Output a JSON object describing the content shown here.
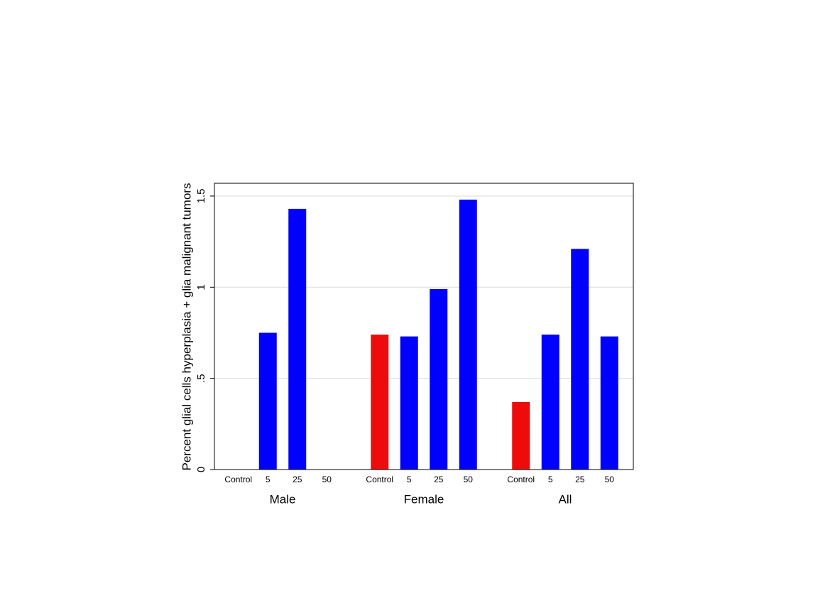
{
  "chart_data": {
    "type": "bar",
    "y_label": "Percent glial cells hyperplasia + glia malignant tumors",
    "categories": [
      "Male",
      "Female",
      "All"
    ],
    "series": [
      {
        "name": "Control",
        "color": "#ee0b0b",
        "values": [
          0,
          0.74,
          0.37
        ]
      },
      {
        "name": "5",
        "color": "#0000ff",
        "values": [
          0.75,
          0.73,
          0.74
        ]
      },
      {
        "name": "25",
        "color": "#0000ff",
        "values": [
          1.43,
          0.99,
          1.21
        ]
      },
      {
        "name": "50",
        "color": "#0000ff",
        "values": [
          0,
          1.48,
          0.73
        ]
      }
    ],
    "ylim": [
      0,
      1.57
    ],
    "yticks": [
      0,
      {
        "value": 0.5,
        "label": ".5"
      },
      1,
      1.5
    ],
    "grid": true
  }
}
